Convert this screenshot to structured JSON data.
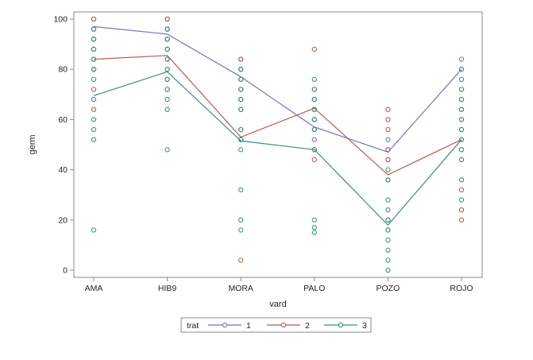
{
  "chart_data": {
    "type": "scatter",
    "xlabel": "vard",
    "ylabel": "germ",
    "categories": [
      "AMA",
      "HIB9",
      "MORA",
      "PALO",
      "POZO",
      "ROJO"
    ],
    "ylim": [
      0,
      100
    ],
    "yticks": [
      0,
      20,
      40,
      60,
      80,
      100
    ],
    "grid": false,
    "legend_title": "trat",
    "legend_position": "bottom",
    "series": [
      {
        "name": "1",
        "color": "#6f78b8",
        "mean_line": [
          97,
          94,
          77,
          57,
          47,
          80
        ],
        "points": {
          "AMA": [
            100,
            96,
            92,
            88,
            84,
            80
          ],
          "HIB9": [
            100,
            96,
            92,
            88,
            84
          ],
          "MORA": [
            84,
            80,
            76,
            72,
            68
          ],
          "PALO": [
            64,
            60,
            56,
            52
          ],
          "POZO": [
            52,
            48,
            44
          ],
          "ROJO": [
            84,
            80,
            72
          ]
        }
      },
      {
        "name": "2",
        "color": "#b85a50",
        "mean_line": [
          84,
          85.5,
          53,
          64.5,
          38,
          52
        ],
        "points": {
          "AMA": [
            100,
            96,
            92,
            88,
            84,
            80,
            72,
            64
          ],
          "HIB9": [
            100,
            96,
            92,
            88,
            84,
            80,
            76,
            72
          ],
          "MORA": [
            84,
            80,
            76,
            72,
            68,
            64,
            56,
            52,
            4
          ],
          "PALO": [
            88,
            72,
            68,
            64,
            60,
            56,
            48,
            44
          ],
          "POZO": [
            64,
            60,
            56,
            48,
            44,
            36,
            20,
            16
          ],
          "ROJO": [
            68,
            64,
            60,
            56,
            52,
            48,
            44,
            32,
            24,
            20
          ]
        }
      },
      {
        "name": "3",
        "color": "#3a8f80",
        "mean_line": [
          69.5,
          79,
          51.5,
          48,
          18,
          52
        ],
        "points": {
          "AMA": [
            96,
            92,
            88,
            84,
            80,
            76,
            68,
            60,
            56,
            52,
            16
          ],
          "HIB9": [
            96,
            92,
            88,
            84,
            80,
            76,
            72,
            68,
            64,
            48
          ],
          "MORA": [
            80,
            76,
            72,
            68,
            64,
            56,
            52,
            48,
            32,
            20,
            16
          ],
          "PALO": [
            76,
            72,
            68,
            64,
            60,
            56,
            48,
            20,
            17,
            15
          ],
          "POZO": [
            40,
            36,
            28,
            24,
            20,
            16,
            12,
            8,
            4,
            0
          ],
          "ROJO": [
            80,
            76,
            72,
            68,
            64,
            60,
            56,
            52,
            48,
            44,
            36,
            28
          ]
        }
      }
    ]
  }
}
